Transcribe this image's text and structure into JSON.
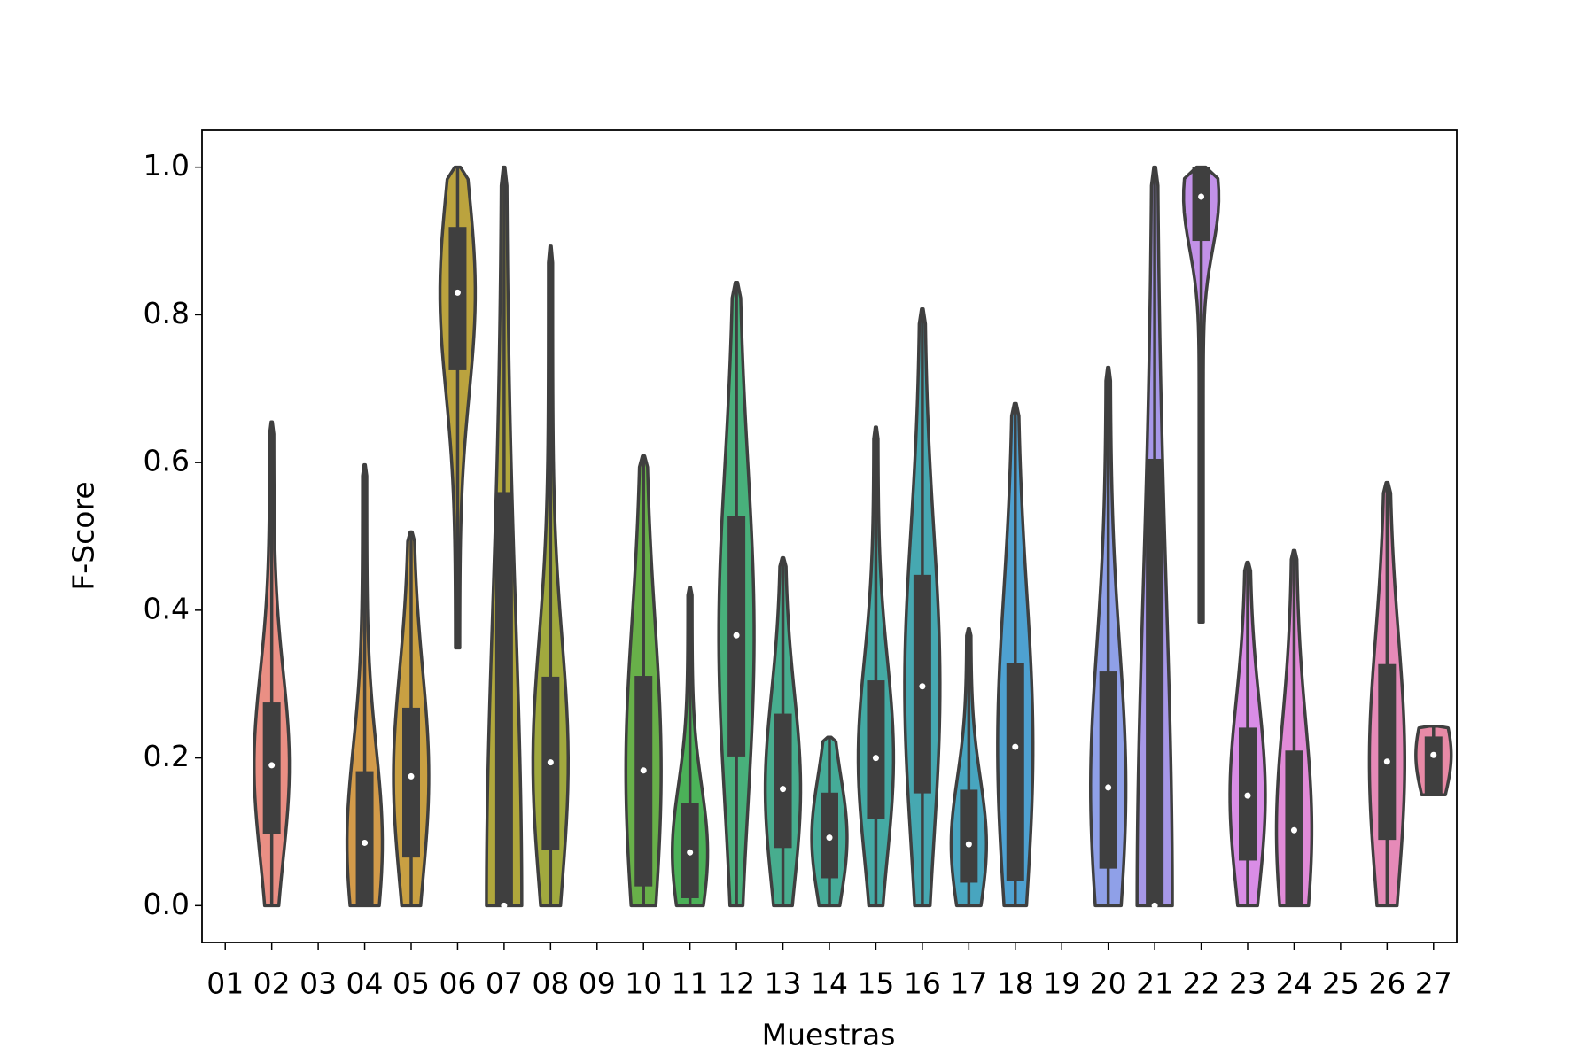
{
  "chart_data": {
    "type": "violin",
    "xlabel": "Muestras",
    "ylabel": "F-Score",
    "categories": [
      "01",
      "02",
      "03",
      "04",
      "05",
      "06",
      "07",
      "08",
      "09",
      "10",
      "11",
      "12",
      "13",
      "14",
      "15",
      "16",
      "17",
      "18",
      "19",
      "20",
      "21",
      "22",
      "23",
      "24",
      "25",
      "26",
      "27"
    ],
    "colors": [
      null,
      "#ea8f84",
      null,
      "#d39b4a",
      "#c9a042",
      "#bba33e",
      "#b0a73c",
      "#a1a93e",
      null,
      "#68b049",
      "#4bb158",
      "#48b07b",
      "#47ad8e",
      "#45ab98",
      "#44aaa4",
      "#46a8b1",
      "#48a5bf",
      "#4ea1d1",
      null,
      "#8fa0e8",
      "#a798e8",
      "#c291e8",
      "#d98de6",
      "#e18bd8",
      null,
      "#e68ab8",
      "#e88aa6"
    ],
    "stats": [
      null,
      {
        "min": 0,
        "q1": 0.097,
        "median": 0.19,
        "q3": 0.275,
        "max": 0.655
      },
      null,
      {
        "min": 0,
        "q1": 0,
        "median": 0.085,
        "q3": 0.182,
        "max": 0.597
      },
      {
        "min": 0,
        "q1": 0.065,
        "median": 0.175,
        "q3": 0.268,
        "max": 0.506
      },
      {
        "min": 0.349,
        "q1": 0.725,
        "median": 0.83,
        "q3": 0.919,
        "max": 1.0
      },
      {
        "min": 0,
        "q1": 0,
        "median": 0,
        "q3": 0.56,
        "max": 1.0
      },
      {
        "min": 0,
        "q1": 0.075,
        "median": 0.194,
        "q3": 0.31,
        "max": 0.893
      },
      null,
      {
        "min": 0,
        "q1": 0.026,
        "median": 0.183,
        "q3": 0.311,
        "max": 0.609
      },
      {
        "min": 0,
        "q1": 0.01,
        "median": 0.072,
        "q3": 0.139,
        "max": 0.431
      },
      {
        "min": 0,
        "q1": 0.202,
        "median": 0.366,
        "q3": 0.527,
        "max": 0.844
      },
      {
        "min": 0,
        "q1": 0.078,
        "median": 0.158,
        "q3": 0.26,
        "max": 0.471
      },
      {
        "min": 0,
        "q1": 0.037,
        "median": 0.092,
        "q3": 0.153,
        "max": 0.228
      },
      {
        "min": 0,
        "q1": 0.117,
        "median": 0.2,
        "q3": 0.305,
        "max": 0.648
      },
      {
        "min": 0,
        "q1": 0.152,
        "median": 0.297,
        "q3": 0.448,
        "max": 0.808
      },
      {
        "min": 0,
        "q1": 0.031,
        "median": 0.083,
        "q3": 0.157,
        "max": 0.375
      },
      {
        "min": 0,
        "q1": 0.033,
        "median": 0.215,
        "q3": 0.328,
        "max": 0.68
      },
      null,
      {
        "min": 0,
        "q1": 0.05,
        "median": 0.16,
        "q3": 0.317,
        "max": 0.729
      },
      {
        "min": 0,
        "q1": 0,
        "median": 0,
        "q3": 0.605,
        "max": 1.0
      },
      {
        "min": 0.384,
        "q1": 0.9,
        "median": 0.96,
        "q3": 1.0,
        "max": 1.0
      },
      {
        "min": 0,
        "q1": 0.061,
        "median": 0.149,
        "q3": 0.241,
        "max": 0.465
      },
      {
        "min": 0,
        "q1": 0,
        "median": 0.102,
        "q3": 0.21,
        "max": 0.481
      },
      null,
      {
        "min": 0,
        "q1": 0.089,
        "median": 0.195,
        "q3": 0.327,
        "max": 0.573
      },
      {
        "min": 0.15,
        "q1": 0.15,
        "median": 0.204,
        "q3": 0.229,
        "max": 0.243
      }
    ],
    "ylim": [
      -0.05,
      1.05
    ],
    "yticks": [
      {
        "value": 0,
        "label": "0.0"
      },
      {
        "value": 0.2,
        "label": "0.2"
      },
      {
        "value": 0.4,
        "label": "0.4"
      },
      {
        "value": 0.6,
        "label": "0.6"
      },
      {
        "value": 0.8,
        "label": "0.8"
      },
      {
        "value": 1,
        "label": "1.0"
      }
    ],
    "grid": false
  }
}
